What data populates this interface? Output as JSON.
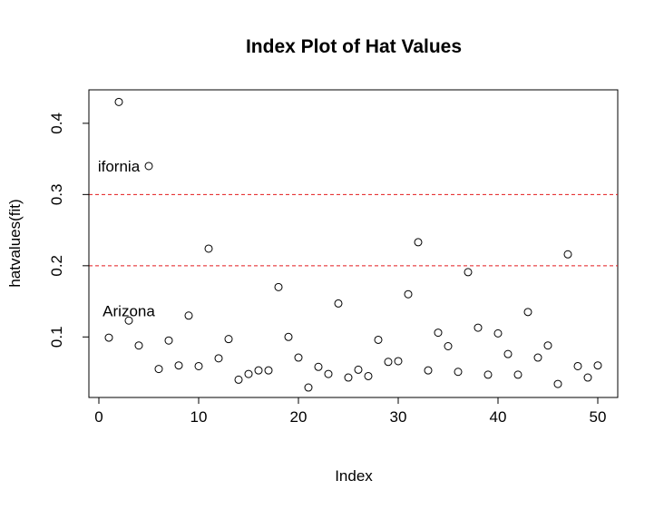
{
  "chart_data": {
    "type": "scatter",
    "title": "Index Plot of Hat Values",
    "xlabel": "Index",
    "ylabel": "hatvalues(fit)",
    "xlim": [
      -1,
      52
    ],
    "ylim": [
      0.015,
      0.447
    ],
    "x_ticks": [
      0,
      10,
      20,
      30,
      40,
      50
    ],
    "y_ticks": [
      0.1,
      0.2,
      0.3,
      0.4
    ],
    "reference_lines": [
      {
        "y": 0.2,
        "color": "#e31a1c",
        "style": "dashed"
      },
      {
        "y": 0.3,
        "color": "#e31a1c",
        "style": "dashed"
      }
    ],
    "marker": "open-circle",
    "x": [
      1,
      2,
      3,
      4,
      5,
      6,
      7,
      8,
      9,
      10,
      11,
      12,
      13,
      14,
      15,
      16,
      17,
      18,
      19,
      20,
      21,
      22,
      23,
      24,
      25,
      26,
      27,
      28,
      29,
      30,
      31,
      32,
      33,
      34,
      35,
      36,
      37,
      38,
      39,
      40,
      41,
      42,
      43,
      44,
      45,
      46,
      47,
      48,
      49,
      50
    ],
    "y": [
      0.099,
      0.43,
      0.123,
      0.088,
      0.34,
      0.055,
      0.095,
      0.06,
      0.13,
      0.059,
      0.224,
      0.07,
      0.097,
      0.04,
      0.048,
      0.053,
      0.053,
      0.17,
      0.1,
      0.071,
      0.029,
      0.058,
      0.048,
      0.147,
      0.043,
      0.054,
      0.045,
      0.096,
      0.065,
      0.066,
      0.16,
      0.233,
      0.053,
      0.106,
      0.087,
      0.051,
      0.191,
      0.113,
      0.047,
      0.105,
      0.076,
      0.047,
      0.135,
      0.071,
      0.088,
      0.034,
      0.216,
      0.059,
      0.043,
      0.06
    ],
    "annotations": [
      {
        "text": "ifornia",
        "x": 2,
        "y": 0.34
      },
      {
        "text": "Arizona",
        "x": 3,
        "y": 0.137
      }
    ]
  }
}
